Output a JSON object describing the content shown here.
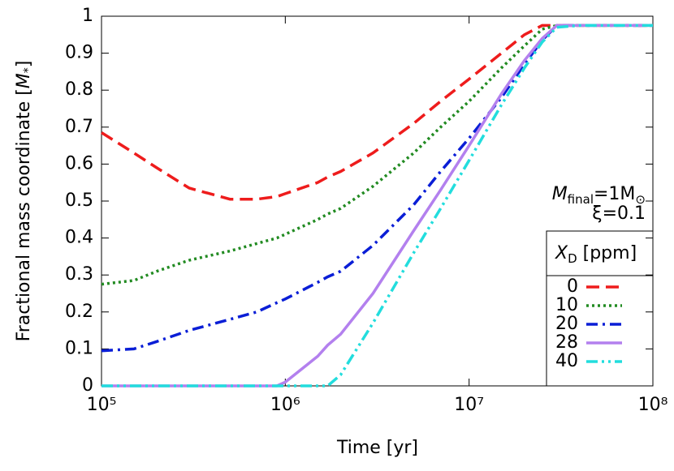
{
  "chart_data": {
    "type": "line",
    "xlabel": "Time [yr]",
    "ylabel": [
      "Fractional mass coordinate [",
      "M",
      "*",
      "]"
    ],
    "annotations": [
      [
        "M",
        "final",
        "=1M",
        "⊙"
      ],
      [
        "ξ=0.1"
      ]
    ],
    "legend_title": [
      "X",
      "D",
      " [ppm]"
    ],
    "legend_position": "lower right",
    "xlog": true,
    "xlim": [
      100000,
      100000000
    ],
    "xticks": [
      {
        "value": 100000,
        "label": "10⁵"
      },
      {
        "value": 1000000,
        "label": "10⁶"
      },
      {
        "value": 10000000,
        "label": "10⁷"
      },
      {
        "value": 100000000,
        "label": "10⁸"
      }
    ],
    "ylim": [
      0,
      1
    ],
    "yticks": [
      0,
      0.1,
      0.2,
      0.3,
      0.4,
      0.5,
      0.6,
      0.7,
      0.8,
      0.9,
      1
    ],
    "x": [
      100000,
      150000,
      200000,
      300000,
      500000,
      700000,
      900000,
      1000000,
      1500000,
      1700000,
      2000000,
      3000000,
      5000000,
      7000000,
      10000000,
      15000000,
      20000000,
      25000000,
      30000000,
      40000000,
      100000000
    ],
    "series": [
      {
        "name": "0",
        "color": "#ee1c1c",
        "dash": "dashed",
        "values": [
          0.685,
          0.63,
          0.59,
          0.535,
          0.505,
          0.505,
          0.512,
          0.52,
          0.55,
          0.565,
          0.58,
          0.63,
          0.71,
          0.77,
          0.83,
          0.9,
          0.95,
          0.975,
          0.975,
          0.975,
          0.975
        ]
      },
      {
        "name": "10",
        "color": "#228b22",
        "dash": "dotted",
        "values": [
          0.275,
          0.285,
          0.31,
          0.34,
          0.365,
          0.385,
          0.4,
          0.41,
          0.45,
          0.465,
          0.48,
          0.54,
          0.63,
          0.7,
          0.77,
          0.86,
          0.92,
          0.965,
          0.975,
          0.975,
          0.975
        ]
      },
      {
        "name": "20",
        "color": "#0a1ed6",
        "dash": "dash-dot",
        "values": [
          0.095,
          0.1,
          0.12,
          0.15,
          0.18,
          0.2,
          0.225,
          0.235,
          0.28,
          0.295,
          0.31,
          0.38,
          0.49,
          0.58,
          0.67,
          0.78,
          0.87,
          0.935,
          0.975,
          0.975,
          0.975
        ]
      },
      {
        "name": "28",
        "color": "#b380ee",
        "dash": "solid",
        "values": [
          0,
          0,
          0,
          0,
          0,
          0,
          0,
          0.01,
          0.08,
          0.11,
          0.14,
          0.25,
          0.42,
          0.53,
          0.65,
          0.79,
          0.88,
          0.94,
          0.975,
          0.975,
          0.975
        ]
      },
      {
        "name": "40",
        "color": "#22dddd",
        "dash": "dash-dot-dot",
        "values": [
          0,
          0,
          0,
          0,
          0,
          0,
          0,
          0,
          0,
          0,
          0.03,
          0.17,
          0.36,
          0.48,
          0.61,
          0.76,
          0.86,
          0.93,
          0.97,
          0.975,
          0.975
        ]
      }
    ]
  }
}
